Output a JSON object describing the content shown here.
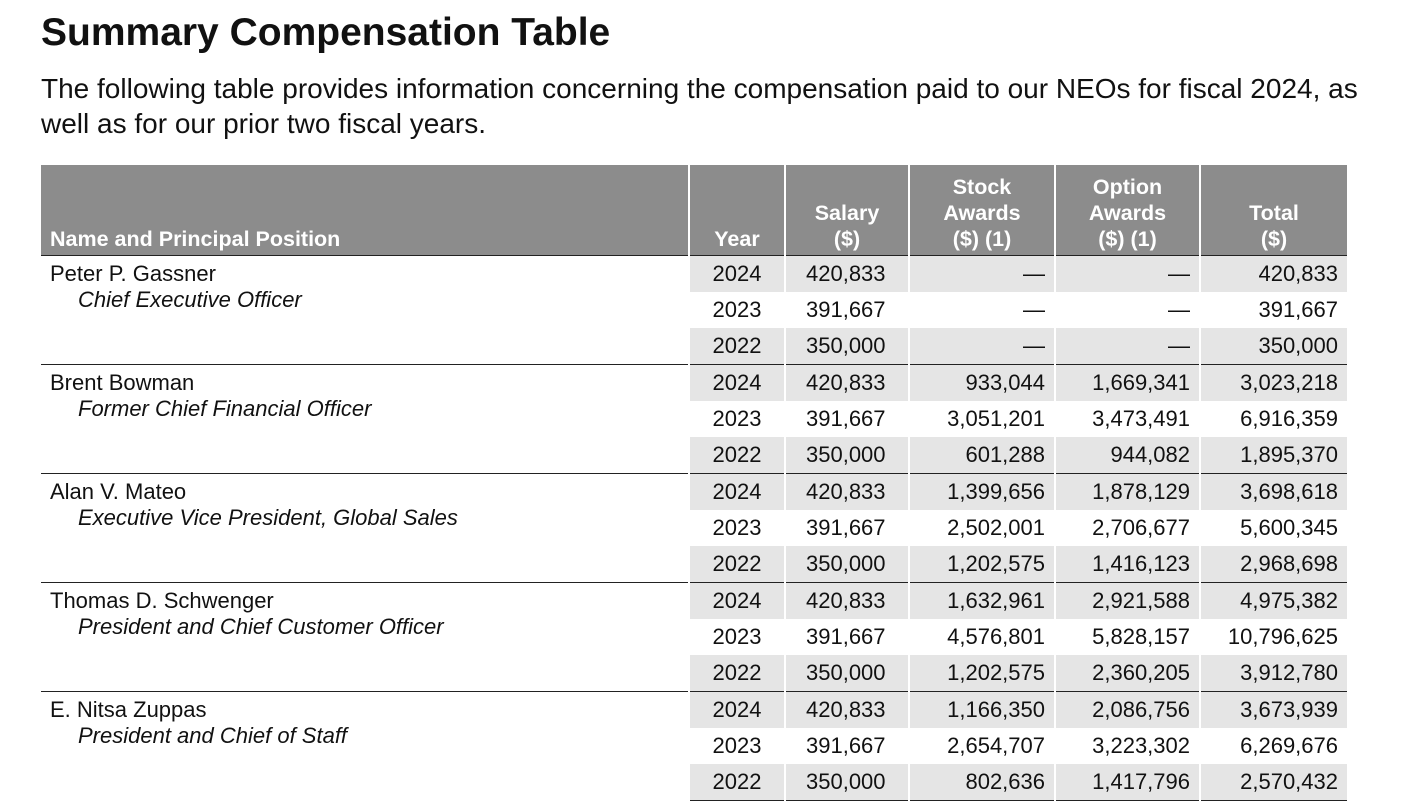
{
  "title": "Summary Compensation Table",
  "intro": "The following table provides information concerning the compensation paid to our NEOs for fiscal 2024, as well as for our prior two fiscal years.",
  "table": {
    "headers": {
      "name": "Name and Principal Position",
      "year": "Year",
      "salary": [
        "Salary",
        "($)"
      ],
      "stock": [
        "Stock",
        "Awards",
        "($) (1)"
      ],
      "option": [
        "Option",
        "Awards",
        "($) (1)"
      ],
      "total": [
        "Total",
        "($)"
      ]
    },
    "groups": [
      {
        "name": "Peter P. Gassner",
        "position": "Chief Executive Officer",
        "rows": [
          {
            "year": "2024",
            "salary": "420,833",
            "stock": "—",
            "option": "—",
            "total": "420,833"
          },
          {
            "year": "2023",
            "salary": "391,667",
            "stock": "—",
            "option": "—",
            "total": "391,667"
          },
          {
            "year": "2022",
            "salary": "350,000",
            "stock": "—",
            "option": "—",
            "total": "350,000"
          }
        ]
      },
      {
        "name": "Brent Bowman",
        "position": "Former Chief Financial Officer",
        "rows": [
          {
            "year": "2024",
            "salary": "420,833",
            "stock": "933,044",
            "option": "1,669,341",
            "total": "3,023,218"
          },
          {
            "year": "2023",
            "salary": "391,667",
            "stock": "3,051,201",
            "option": "3,473,491",
            "total": "6,916,359"
          },
          {
            "year": "2022",
            "salary": "350,000",
            "stock": "601,288",
            "option": "944,082",
            "total": "1,895,370"
          }
        ]
      },
      {
        "name": "Alan V. Mateo",
        "position": "Executive Vice President, Global Sales",
        "rows": [
          {
            "year": "2024",
            "salary": "420,833",
            "stock": "1,399,656",
            "option": "1,878,129",
            "total": "3,698,618"
          },
          {
            "year": "2023",
            "salary": "391,667",
            "stock": "2,502,001",
            "option": "2,706,677",
            "total": "5,600,345"
          },
          {
            "year": "2022",
            "salary": "350,000",
            "stock": "1,202,575",
            "option": "1,416,123",
            "total": "2,968,698"
          }
        ]
      },
      {
        "name": "Thomas D. Schwenger",
        "position": "President and Chief Customer Officer",
        "rows": [
          {
            "year": "2024",
            "salary": "420,833",
            "stock": "1,632,961",
            "option": "2,921,588",
            "total": "4,975,382"
          },
          {
            "year": "2023",
            "salary": "391,667",
            "stock": "4,576,801",
            "option": "5,828,157",
            "total": "10,796,625"
          },
          {
            "year": "2022",
            "salary": "350,000",
            "stock": "1,202,575",
            "option": "2,360,205",
            "total": "3,912,780"
          }
        ]
      },
      {
        "name": "E. Nitsa Zuppas",
        "position": "President and Chief of Staff",
        "rows": [
          {
            "year": "2024",
            "salary": "420,833",
            "stock": "1,166,350",
            "option": "2,086,756",
            "total": "3,673,939"
          },
          {
            "year": "2023",
            "salary": "391,667",
            "stock": "2,654,707",
            "option": "3,223,302",
            "total": "6,269,676"
          },
          {
            "year": "2022",
            "salary": "350,000",
            "stock": "802,636",
            "option": "1,417,796",
            "total": "2,570,432"
          }
        ]
      }
    ]
  }
}
